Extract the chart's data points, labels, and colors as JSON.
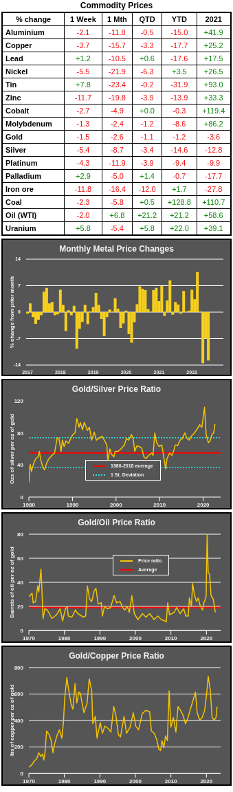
{
  "chart_data": [
    {
      "type": "heatmap",
      "title": "Commodity Prices",
      "ylabel": "% change",
      "categories": [
        "1 Week",
        "1 Mth",
        "QTD",
        "YTD",
        "2021"
      ],
      "y_categories": [
        "Aluminium",
        "Copper",
        "Lead",
        "Nickel",
        "Tin",
        "Zinc",
        "Cobalt",
        "Molybdenum",
        "Gold",
        "Silver",
        "Platinum",
        "Palladium",
        "Iron ore",
        "Coal",
        "Oil (WTI)",
        "Uranium"
      ],
      "cells": [
        [
          -2.1,
          -11.8,
          -0.5,
          -15.0,
          41.9
        ],
        [
          -3.7,
          -15.7,
          -3.3,
          -17.7,
          25.2
        ],
        [
          1.2,
          -10.5,
          0.6,
          -17.6,
          17.5
        ],
        [
          -5.5,
          -21.9,
          -6.3,
          3.5,
          26.5
        ],
        [
          7.8,
          -23.4,
          -0.2,
          -31.9,
          93.0
        ],
        [
          -11.7,
          -19.8,
          -3.9,
          -13.9,
          33.3
        ],
        [
          -2.7,
          -4.9,
          0.0,
          -0.3,
          119.4
        ],
        [
          -1.3,
          -2.4,
          -1.2,
          -8.6,
          86.2
        ],
        [
          -1.5,
          -2.6,
          -1.1,
          -1.2,
          -3.6
        ],
        [
          -5.4,
          -8.7,
          -3.4,
          -14.6,
          -12.8
        ],
        [
          -4.3,
          -11.9,
          -3.9,
          -9.4,
          -9.9
        ],
        [
          2.9,
          -5.0,
          1.4,
          -0.7,
          -17.7
        ],
        [
          -11.8,
          -16.4,
          -12.0,
          1.7,
          -27.8
        ],
        [
          -2.3,
          -5.8,
          0.5,
          128.8,
          110.7
        ],
        [
          -2.0,
          6.8,
          21.2,
          21.2,
          58.6
        ],
        [
          5.8,
          -5.4,
          5.8,
          22.0,
          39.1
        ]
      ],
      "cell_labels": [
        [
          "-2.1",
          "-11.8",
          "-0.5",
          "-15.0",
          "+41.9"
        ],
        [
          "-3.7",
          "-15.7",
          "-3.3",
          "-17.7",
          "+25.2"
        ],
        [
          "+1.2",
          "-10.5",
          "+0.6",
          "-17.6",
          "+17.5"
        ],
        [
          "-5.5",
          "-21.9",
          "-6.3",
          "+3.5",
          "+26.5"
        ],
        [
          "+7.8",
          "-23.4",
          "-0.2",
          "-31.9",
          "+93.0"
        ],
        [
          "-11.7",
          "-19.8",
          "-3.9",
          "-13.9",
          "+33.3"
        ],
        [
          "-2.7",
          "-4.9",
          "+0.0",
          "-0.3",
          "+119.4"
        ],
        [
          "-1.3",
          "-2.4",
          "-1.2",
          "-8.6",
          "+86.2"
        ],
        [
          "-1.5",
          "-2.6",
          "-1.1",
          "-1.2",
          "-3.6"
        ],
        [
          "-5.4",
          "-8.7",
          "-3.4",
          "-14.6",
          "-12.8"
        ],
        [
          "-4.3",
          "-11.9",
          "-3.9",
          "-9.4",
          "-9.9"
        ],
        [
          "+2.9",
          "-5.0",
          "+1.4",
          "-0.7",
          "-17.7"
        ],
        [
          "-11.8",
          "-16.4",
          "-12.0",
          "+1.7",
          "-27.8"
        ],
        [
          "-2.3",
          "-5.8",
          "+0.5",
          "+128.8",
          "+110.7"
        ],
        [
          "-2.0",
          "+6.8",
          "+21.2",
          "+21.2",
          "+58.6"
        ],
        [
          "+5.8",
          "-5.4",
          "+5.8",
          "+22.0",
          "+39.1"
        ]
      ]
    },
    {
      "type": "bar",
      "title": "Monthly Metal Price Changes",
      "ylabel": "% change from prior month",
      "color": "#f7d01f",
      "grid": "y",
      "ylim": [
        -14,
        14
      ],
      "yticks": [
        -14,
        -7,
        0,
        7,
        14
      ],
      "categories": [
        "2017",
        null,
        null,
        null,
        null,
        null,
        null,
        null,
        null,
        null,
        null,
        null,
        "2018",
        null,
        null,
        null,
        null,
        null,
        null,
        null,
        null,
        null,
        null,
        null,
        "2019",
        null,
        null,
        null,
        null,
        null,
        null,
        null,
        null,
        null,
        null,
        null,
        "2020",
        null,
        null,
        null,
        null,
        null,
        null,
        null,
        null,
        null,
        null,
        null,
        "2021",
        null,
        null,
        null,
        null,
        null,
        null,
        null,
        null,
        null,
        null,
        null,
        "2022",
        null,
        null,
        null,
        null,
        null,
        null,
        null,
        null,
        null,
        null,
        null
      ],
      "values": [
        -0.4,
        2.3,
        -1.3,
        -3.1,
        -2.0,
        -0.8,
        5.4,
        6.4,
        2.3,
        2.7,
        -0.8,
        -0.6,
        5.9,
        1.9,
        -5.0,
        0.5,
        -0.8,
        1.7,
        -9.7,
        -4.4,
        -2.6,
        1.9,
        -3.2,
        0.2,
        1.3,
        5.1,
        1.9,
        -1.8,
        -6.3,
        -1.3,
        0.7,
        0.1,
        3.7,
        0.9,
        -4.2,
        -3.0,
        0.4,
        -5.8,
        -8.1,
        -2.7,
        2.1,
        6.8,
        6.2,
        5.8,
        0.8,
        0.1,
        5.8,
        6.4,
        2.9,
        6.9,
        -1.0,
        3.1,
        8.4,
        -0.7,
        2.7,
        2.0,
        -0.4,
        5.6,
        0.1,
        0.4,
        5.9,
        3.4,
        10.6,
        0.2,
        -13.5,
        -7.0,
        -12.8,
        null,
        null,
        null,
        null,
        null
      ]
    },
    {
      "type": "line",
      "title": "Gold/Silver Price Ratio",
      "ylabel": "Ozs of silver per oz of gold",
      "xlim": [
        1980,
        2024
      ],
      "xticks": [
        1980,
        1990,
        2000,
        2010,
        2020
      ],
      "ylim": [
        0,
        120
      ],
      "yticks": [
        0,
        40,
        80,
        120
      ],
      "grid": false,
      "legend": "bottom",
      "series": [
        {
          "color": "#f5c400",
          "x": [
            1980.0,
            1980.3,
            1980.6,
            1981.1,
            1981.6,
            1982.1,
            1982.4,
            1982.7,
            1983.2,
            1983.6,
            1984.0,
            1984.5,
            1985.3,
            1985.9,
            1986.5,
            1986.9,
            1987.4,
            1987.7,
            1988.1,
            1988.5,
            1989.1,
            1989.6,
            1990.1,
            1990.6,
            1991.0,
            1991.5,
            1991.8,
            1992.3,
            1992.7,
            1993.1,
            1993.4,
            1993.9,
            1994.4,
            1995.0,
            1995.5,
            1996.0,
            1996.8,
            1997.3,
            1997.9,
            1998.1,
            1998.6,
            1998.9,
            1999.5,
            1999.8,
            2000.5,
            2001.3,
            2001.9,
            2002.4,
            2002.9,
            2003.5,
            2003.9,
            2004.3,
            2004.8,
            2005.3,
            2005.9,
            2006.4,
            2006.9,
            2007.5,
            2008.2,
            2008.5,
            2008.9,
            2009.3,
            2009.9,
            2010.5,
            2010.9,
            2011.4,
            2011.7,
            2012.3,
            2012.8,
            2013.2,
            2013.6,
            2014.1,
            2014.7,
            2015.2,
            2015.8,
            2016.3,
            2016.8,
            2017.3,
            2018.0,
            2018.5,
            2019.2,
            2019.7,
            2020.3,
            2020.7,
            2021.2,
            2021.6,
            2022.0,
            2022.4,
            2022.7
          ],
          "values": [
            18,
            41,
            32,
            42,
            48,
            50,
            57,
            47,
            37,
            34,
            41,
            47,
            52,
            55,
            74,
            73,
            57,
            71,
            63,
            70,
            67,
            73,
            78,
            80,
            98,
            87,
            93,
            84,
            93,
            88,
            83,
            87,
            71,
            81,
            71,
            73,
            76,
            71,
            65,
            45,
            60,
            54,
            50,
            57,
            57,
            61,
            65,
            73,
            71,
            78,
            74,
            57,
            64,
            63,
            61,
            50,
            48,
            52,
            55,
            52,
            80,
            68,
            63,
            65,
            52,
            35,
            48,
            55,
            52,
            57,
            65,
            64,
            71,
            73,
            80,
            73,
            71,
            76,
            80,
            84,
            90,
            87,
            112,
            77,
            68,
            70,
            78,
            80,
            91
          ]
        }
      ],
      "ref_lines": [
        {
          "axis": "y",
          "value": 55,
          "label": "1980-2018 average",
          "color": "#ff0000",
          "line_style": "solid"
        },
        {
          "axis": "y",
          "value": 74,
          "label": "1 St. Deviation",
          "color": "#33e0e0",
          "line_style": "dotted"
        },
        {
          "axis": "y",
          "value": 37,
          "label": null,
          "color": "#33e0e0",
          "line_style": "dotted"
        }
      ]
    },
    {
      "type": "line",
      "title": "Gold/Oil Price Ratio",
      "ylabel": "Barrels of oil per oz of gold",
      "xlim": [
        1970,
        2024
      ],
      "xticks": [
        1970,
        1980,
        1990,
        2000,
        2010,
        2020
      ],
      "ylim": [
        0,
        80
      ],
      "yticks": [
        0,
        20,
        40,
        60,
        80
      ],
      "grid": "y",
      "legend": "top",
      "series": [
        {
          "name": "Price ratio",
          "color": "#f5c400",
          "x": [
            1970.0,
            1970.9,
            1971.2,
            1971.9,
            1972.5,
            1972.8,
            1973.4,
            1973.6,
            1974.0,
            1974.5,
            1975.2,
            1976.5,
            1977.8,
            1978.8,
            1979.5,
            1980.3,
            1980.8,
            1981.1,
            1982.1,
            1983.1,
            1983.8,
            1985.4,
            1986.0,
            1986.5,
            1987.1,
            1987.7,
            1988.4,
            1988.9,
            1989.5,
            1990.4,
            1990.7,
            1991.3,
            1992.1,
            1993.0,
            1994.0,
            1994.7,
            1995.7,
            1996.4,
            1997.0,
            1997.7,
            1998.3,
            1999.0,
            1999.7,
            2000.7,
            2002.0,
            2003.0,
            2004.0,
            2005.3,
            2006.3,
            2007.3,
            2008.3,
            2008.7,
            2009.1,
            2009.6,
            2010.9,
            2011.6,
            2012.6,
            2013.6,
            2014.2,
            2014.9,
            2015.2,
            2015.8,
            2016.1,
            2016.6,
            2017.2,
            2017.7,
            2018.2,
            2018.9,
            2019.3,
            2019.9,
            2020.2,
            2020.5,
            2020.9,
            2021.3,
            2021.9,
            2022.2,
            2022.5
          ],
          "values": [
            28,
            31,
            23,
            24,
            37,
            32,
            51,
            39,
            10,
            18,
            17,
            10,
            13,
            18,
            8,
            18,
            20,
            12,
            11,
            17,
            14,
            11,
            12,
            37,
            26,
            24,
            33,
            35,
            22,
            23,
            12,
            20,
            18,
            19,
            29,
            23,
            24,
            19,
            17,
            20,
            15,
            29,
            14,
            9,
            14,
            11,
            14,
            9,
            12,
            9,
            8,
            7,
            23,
            13,
            15,
            19,
            14,
            18,
            12,
            12,
            27,
            20,
            39,
            30,
            24,
            27,
            21,
            17,
            23,
            28,
            80,
            48,
            47,
            29,
            26,
            21,
            15
          ]
        }
      ],
      "ref_lines": [
        {
          "axis": "y",
          "value": 19,
          "label": "Average",
          "color": "#ff0000",
          "line_style": "solid"
        }
      ]
    },
    {
      "type": "line",
      "title": "Gold/Copper Price Ratio",
      "ylabel": "lbs of copper per oz of gold",
      "xlim": [
        1970,
        2024
      ],
      "xticks": [
        1970,
        1980,
        1990,
        2000,
        2010,
        2020
      ],
      "ylim": [
        0,
        800
      ],
      "yticks": [
        0,
        200,
        400,
        600,
        800
      ],
      "grid": "y",
      "series": [
        {
          "color": "#f5c400",
          "x": [
            1970.0,
            1970.8,
            1971.5,
            1972.2,
            1972.8,
            1973.4,
            1973.9,
            1974.2,
            1974.5,
            1975.0,
            1975.7,
            1976.2,
            1976.8,
            1977.2,
            1977.9,
            1978.6,
            1979.3,
            1979.7,
            1980.1,
            1980.7,
            1981.3,
            1981.9,
            1982.4,
            1983.0,
            1983.5,
            1984.1,
            1984.5,
            1985.0,
            1985.5,
            1986.4,
            1987.0,
            1987.7,
            1988.0,
            1988.7,
            1989.2,
            1990.1,
            1990.7,
            1991.4,
            1992.4,
            1993.1,
            1993.9,
            1994.5,
            1995.2,
            1995.8,
            1996.8,
            1997.5,
            1998.5,
            1999.4,
            2000.1,
            2000.9,
            2001.9,
            2002.9,
            2004.0,
            2004.5,
            2005.3,
            2006.0,
            2006.6,
            2007.1,
            2007.5,
            2008.0,
            2008.5,
            2009.0,
            2009.5,
            2010.0,
            2010.7,
            2011.4,
            2012.0,
            2012.7,
            2013.4,
            2014.1,
            2014.7,
            2015.4,
            2016.2,
            2016.9,
            2017.4,
            2018.1,
            2018.8,
            2019.5,
            2020.0,
            2020.5,
            2021.1,
            2021.6,
            2022.2,
            2022.7,
            2023.0
          ],
          "values": [
            46,
            64,
            92,
            110,
            156,
            128,
            147,
            101,
            147,
            321,
            294,
            257,
            156,
            220,
            284,
            330,
            266,
            376,
            569,
            725,
            615,
            523,
            486,
            679,
            532,
            615,
            606,
            532,
            459,
            532,
            716,
            624,
            376,
            431,
            266,
            385,
            303,
            358,
            339,
            312,
            505,
            440,
            294,
            275,
            431,
            303,
            349,
            459,
            358,
            330,
            450,
            477,
            468,
            321,
            303,
            257,
            183,
            174,
            248,
            193,
            284,
            248,
            624,
            349,
            422,
            312,
            505,
            477,
            440,
            376,
            413,
            477,
            550,
            615,
            459,
            404,
            422,
            477,
            587,
            734,
            624,
            422,
            404,
            422,
            505
          ]
        }
      ]
    }
  ]
}
